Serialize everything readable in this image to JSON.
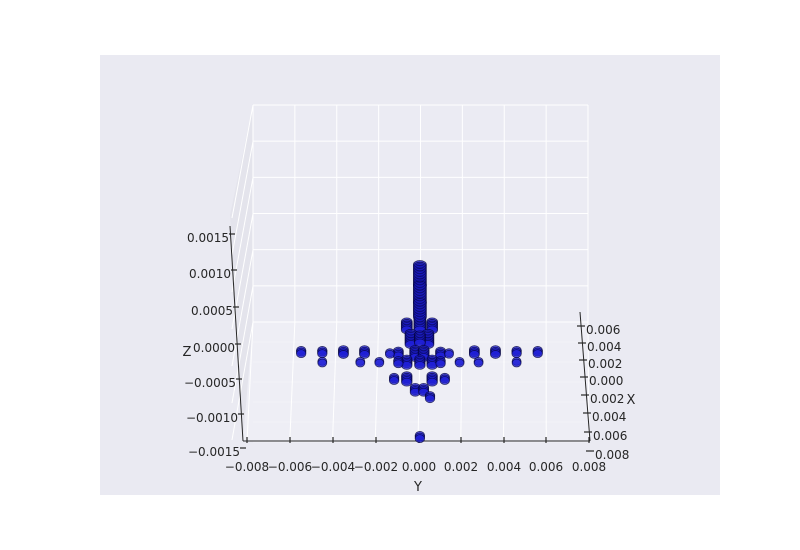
{
  "chart_data": {
    "type": "scatter",
    "projection": "3d",
    "title": "",
    "xlabel": "X",
    "ylabel": "Y",
    "zlabel": "Z",
    "grid": true,
    "legend": "none",
    "xlim": [
      -0.008,
      0.008
    ],
    "ylim": [
      -0.008,
      0.008
    ],
    "zlim": [
      -0.0015,
      0.0015
    ],
    "x_ticks": [
      "0.006",
      "0.004",
      "0.002",
      "0.000",
      "0.002",
      "0.004",
      "0.006",
      "0.008"
    ],
    "y_ticks": [
      "−0.008",
      "−0.006",
      "−0.004",
      "−0.002",
      "0.000",
      "0.002",
      "0.004",
      "0.006",
      "0.008"
    ],
    "z_ticks": [
      "0.0015",
      "0.0010",
      "0.0005",
      "0.0000",
      "−0.0005",
      "−0.0010",
      "−0.0015"
    ],
    "colors": {
      "figure_bg": "#ffffff",
      "axes_bg": "#eaeaf2",
      "pane_left": "#e4e4ec",
      "pane_back": "#ebebf3",
      "pane_floor": "#eeeef5",
      "grid": "#ffffff",
      "marker_face": "#1f1fd6",
      "marker_edge": "#000033"
    },
    "series": [
      {
        "marker": "circle",
        "points": [
          {
            "y": 2e-05,
            "z": 0.00098,
            "n": 14
          },
          {
            "y": 2e-05,
            "z": 0.00072,
            "n": 12
          },
          {
            "y": 2e-05,
            "z": 0.0005,
            "n": 10
          },
          {
            "y": 2e-05,
            "z": 0.0003,
            "n": 8
          },
          {
            "y": -0.0006,
            "z": 0.00028,
            "n": 6
          },
          {
            "y": 0.0006,
            "z": 0.00028,
            "n": 6
          },
          {
            "y": -0.0004,
            "z": 0.0001,
            "n": 8
          },
          {
            "y": 0.0004,
            "z": 0.0001,
            "n": 8
          },
          {
            "y": 2e-05,
            "z": 0.0001,
            "n": 6
          },
          {
            "y": -0.0002,
            "z": -0.0001,
            "n": 6
          },
          {
            "y": 0.0002,
            "z": -0.0001,
            "n": 6
          },
          {
            "y": -0.001,
            "z": -0.0001,
            "n": 4
          },
          {
            "y": 0.001,
            "z": -0.0001,
            "n": 4
          },
          {
            "y": -0.0006,
            "z": -0.00022,
            "n": 5
          },
          {
            "y": 0.0006,
            "z": -0.00022,
            "n": 5
          },
          {
            "y": 2e-05,
            "z": -0.00022,
            "n": 5
          },
          {
            "y": -0.0006,
            "z": -0.00045,
            "n": 5
          },
          {
            "y": 0.0006,
            "z": -0.00045,
            "n": 5
          },
          {
            "y": -0.0012,
            "z": -0.00045,
            "n": 3
          },
          {
            "y": 0.0012,
            "z": -0.00045,
            "n": 3
          },
          {
            "y": -0.0002,
            "z": -0.0006,
            "n": 4
          },
          {
            "y": 0.0002,
            "z": -0.0006,
            "n": 4
          },
          {
            "y": 0.0005,
            "z": -0.0007,
            "n": 3
          },
          {
            "y": 2e-05,
            "z": -0.00125,
            "n": 3
          },
          {
            "y": -0.0026,
            "z": -8e-05,
            "n": 4
          },
          {
            "y": 0.0026,
            "z": -8e-05,
            "n": 4
          },
          {
            "y": -0.0036,
            "z": -8e-05,
            "n": 4
          },
          {
            "y": 0.0036,
            "z": -8e-05,
            "n": 4
          },
          {
            "y": -0.0046,
            "z": -8e-05,
            "n": 3
          },
          {
            "y": 0.0046,
            "z": -8e-05,
            "n": 3
          },
          {
            "y": -0.0046,
            "z": -0.00022,
            "n": 2
          },
          {
            "y": 0.0046,
            "z": -0.00022,
            "n": 2
          },
          {
            "y": -0.0056,
            "z": -8e-05,
            "n": 3
          },
          {
            "y": 0.0056,
            "z": -8e-05,
            "n": 3
          },
          {
            "y": -0.0028,
            "z": -0.00022,
            "n": 2
          },
          {
            "y": 0.0028,
            "z": -0.00022,
            "n": 2
          },
          {
            "y": -0.0019,
            "z": -0.00022,
            "n": 2
          },
          {
            "y": 0.0019,
            "z": -0.00022,
            "n": 2
          },
          {
            "y": -0.0014,
            "z": -0.0001,
            "n": 2
          },
          {
            "y": 0.0014,
            "z": -0.0001,
            "n": 2
          },
          {
            "y": -0.001,
            "z": -0.00022,
            "n": 3
          },
          {
            "y": 0.001,
            "z": -0.00022,
            "n": 3
          }
        ]
      }
    ]
  }
}
